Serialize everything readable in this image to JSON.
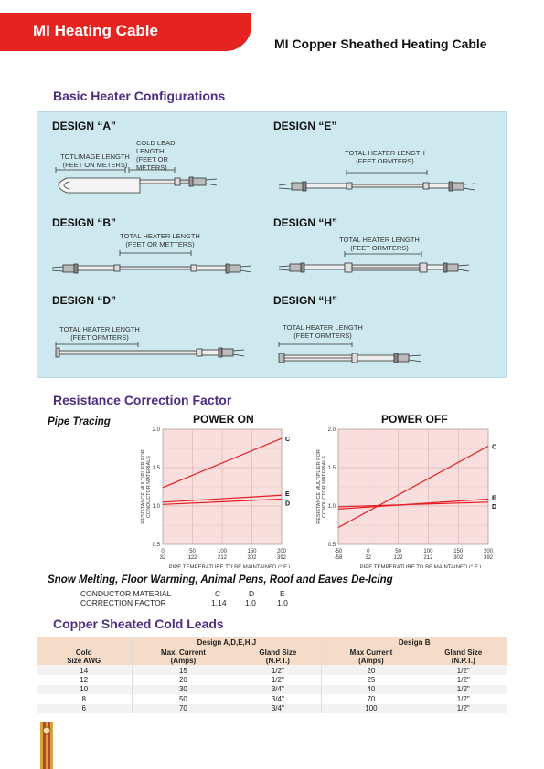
{
  "header": {
    "banner_title": "MI Heating Cable",
    "subtitle": "MI Copper Sheathed Heating Cable",
    "banner_color": "#e52421"
  },
  "sections": {
    "configs": "Basic Heater Configurations",
    "resistance": "Resistance Correction Factor",
    "cold_leads": "Copper Sheated Cold Leads"
  },
  "designs": [
    {
      "label": "DESIGN “A”",
      "caption1": "TOTLIMAGE LENGTH\n(FEET ON METERS)",
      "caption2": "COLD LEAD\nLENGTH\n(FEET OR\nMETERS)"
    },
    {
      "label": "DESIGN “E”",
      "caption1": "TOTAL HEATER LENGTH\n(FEET ORMTERS)"
    },
    {
      "label": "DESIGN “B”",
      "caption1": "TOTAL HEATER LENGTH\n(FEET OR METTERS)"
    },
    {
      "label": "DESIGN “H”",
      "caption1": "TOTAL HEATER LENGTH\n(FEET ORMTERS)"
    },
    {
      "label": "DESIGN “D”",
      "caption1": "TOTAL HEATER LENGTH\n(FEET ORMTERS)"
    },
    {
      "label": "DESIGN “H”",
      "caption1": "TOTAL HEATER LENGTH\n(FEET ORMTERS)"
    }
  ],
  "pipe_tracing_label": "Pipe Tracing",
  "chart_data": [
    {
      "type": "line",
      "title": "POWER ON",
      "xlabel": "PIPE TEMPERATURE TO BE MAINTAINED (° F )",
      "ylabel": "RESISTANCE MULTIPLIER FOR CONDUCTOR MATERIALS",
      "x_ticks_c": [
        "0",
        "50",
        "100",
        "150",
        "200"
      ],
      "x_ticks_f": [
        "32",
        "122",
        "212",
        "302",
        "392"
      ],
      "xlim": [
        0,
        200
      ],
      "ylim": [
        0.5,
        2.0
      ],
      "y_ticks": [
        "0.5",
        "1.0",
        "1.5",
        "2.0"
      ],
      "grid": true,
      "series": [
        {
          "name": "C",
          "x": [
            0,
            200
          ],
          "y": [
            1.24,
            1.88
          ]
        },
        {
          "name": "E",
          "x": [
            0,
            200
          ],
          "y": [
            1.05,
            1.14
          ]
        },
        {
          "name": "D",
          "x": [
            0,
            200
          ],
          "y": [
            1.02,
            1.09
          ]
        }
      ]
    },
    {
      "type": "line",
      "title": "POWER OFF",
      "xlabel": "PIPE TEMPERATURE TO BE MAINTAINED (° F )",
      "ylabel": "RESISTANCE MULTIPLIER FOR CONDUCTOR MATERIALS",
      "x_ticks_c": [
        "-50",
        "0",
        "50",
        "100",
        "150",
        "200"
      ],
      "x_ticks_f": [
        "-58",
        "32",
        "122",
        "212",
        "302",
        "392"
      ],
      "xlim": [
        -50,
        200
      ],
      "ylim": [
        0.5,
        2.0
      ],
      "y_ticks": [
        "0.5",
        "1.0",
        "1.5",
        "2.0"
      ],
      "grid": true,
      "series": [
        {
          "name": "C",
          "x": [
            -50,
            200
          ],
          "y": [
            0.72,
            1.78
          ]
        },
        {
          "name": "E",
          "x": [
            -50,
            200
          ],
          "y": [
            0.96,
            1.09
          ]
        },
        {
          "name": "D",
          "x": [
            -50,
            200
          ],
          "y": [
            0.99,
            1.05
          ]
        }
      ]
    }
  ],
  "snow": {
    "heading": "Snow Melting, Floor Warming, Animal Pens, Roof and Eaves De-Icing",
    "row1_label": "CONDUCTOR MATERIAL",
    "row2_label": "CORRECTION FACTOR",
    "materials": [
      "C",
      "D",
      "E"
    ],
    "factors": [
      "1.14",
      "1.0",
      "1.0"
    ]
  },
  "cold_leads_table": {
    "group1": "Design A,D,E,H,J",
    "group2": "Design B",
    "headers": [
      "Cold\nSize AWG",
      "Max. Current\n(Amps)",
      "Gland Size\n(N.P.T.)",
      "Max Current\n(Amps)",
      "Gland Size\n(N.P.T.)"
    ],
    "rows": [
      [
        "14",
        "15",
        "1/2\"",
        "20",
        "1/2\""
      ],
      [
        "12",
        "20",
        "1/2\"",
        "25",
        "1/2\""
      ],
      [
        "10",
        "30",
        "3/4\"",
        "40",
        "1/2\""
      ],
      [
        "8",
        "50",
        "3/4\"",
        "70",
        "1/2\""
      ],
      [
        "6",
        "70",
        "3/4\"",
        "100",
        "1/2\""
      ]
    ]
  }
}
